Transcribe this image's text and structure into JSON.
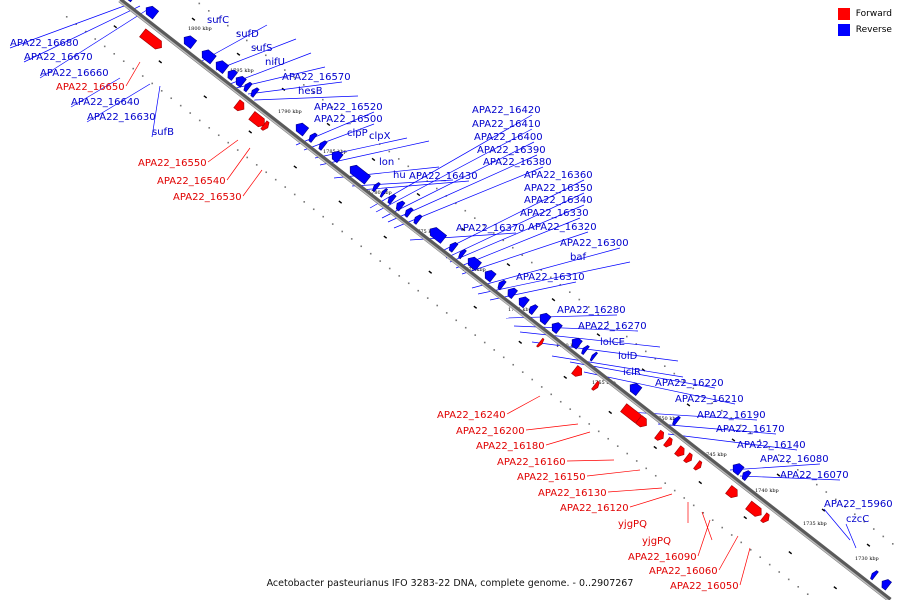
{
  "caption": "Acetobacter pasteurianus IFO 3283-22 DNA, complete genome. - 0..2907267",
  "legend": [
    {
      "label": "Forward",
      "color": "#ff0000"
    },
    {
      "label": "Reverse",
      "color": "#0000ff"
    }
  ],
  "colors": {
    "forward": "#ff0000",
    "reverse": "#0000ff",
    "backbone": "#808080"
  },
  "ticks": [
    "1800 kbp",
    "1795 kbp",
    "1790 kbp",
    "1785 kbp",
    "1780 kbp",
    "1775 kbp",
    "1770 kbp",
    "1765 kbp",
    "1760 kbp",
    "1755 kbp",
    "1750 kbp",
    "1745 kbp",
    "1740 kbp",
    "1735 kbp",
    "1730 kbp"
  ],
  "reverse_labels": [
    "APA22_16680",
    "APA22_16670",
    "APA22_16660",
    "APA22_16640",
    "APA22_16630",
    "sufB",
    "sufC",
    "sufD",
    "sufS",
    "nifU",
    "APA22_16570",
    "hesB",
    "APA22_16520",
    "APA22_16500",
    "clpP",
    "clpX",
    "lon",
    "hu",
    "APA22_16430",
    "APA22_16420",
    "APA22_16410",
    "APA22_16400",
    "APA22_16390",
    "APA22_16380",
    "APA22_16360",
    "APA22_16350",
    "APA22_16340",
    "APA22_16330",
    "APA22_16370",
    "APA22_16320",
    "APA22_16300",
    "baf",
    "APA22_16310",
    "APA22_16280",
    "APA22_16270",
    "lolCE",
    "lolD",
    "iclR",
    "APA22_16220",
    "APA22_16210",
    "APA22_16190",
    "APA22_16170",
    "APA22_16140",
    "APA22_16080",
    "APA22_16070",
    "APA22_15960",
    "czcC"
  ],
  "forward_labels": [
    "APA22_16650",
    "APA22_16550",
    "APA22_16540",
    "APA22_16530",
    "APA22_16240",
    "APA22_16200",
    "APA22_16180",
    "APA22_16160",
    "APA22_16150",
    "APA22_16130",
    "APA22_16120",
    "yjgPQ",
    "yjgPQ",
    "APA22_16090",
    "APA22_16060",
    "APA22_16050"
  ]
}
